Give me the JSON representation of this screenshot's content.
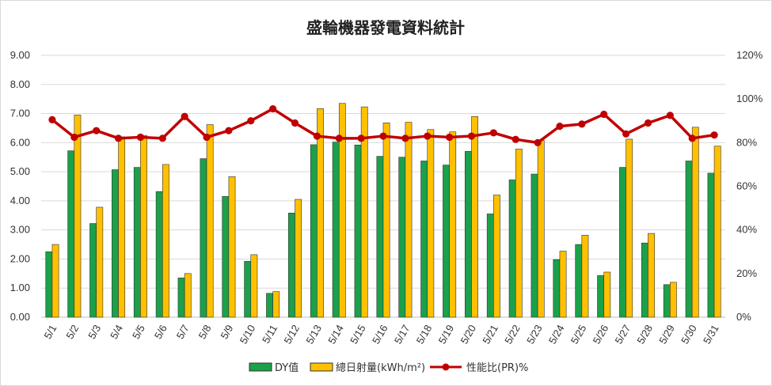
{
  "chart_data": {
    "type": "bar",
    "title": "盛輪機器發電資料統計",
    "categories": [
      "5/1",
      "5/2",
      "5/3",
      "5/4",
      "5/5",
      "5/6",
      "5/7",
      "5/8",
      "5/9",
      "5/10",
      "5/11",
      "5/12",
      "5/13",
      "5/14",
      "5/15",
      "5/16",
      "5/17",
      "5/18",
      "5/19",
      "5/20",
      "5/21",
      "5/22",
      "5/23",
      "5/24",
      "5/25",
      "5/26",
      "5/27",
      "5/28",
      "5/29",
      "5/30",
      "5/31"
    ],
    "left_axis": {
      "ylim": [
        0,
        9
      ],
      "ticks": [
        "0.00",
        "1.00",
        "2.00",
        "3.00",
        "4.00",
        "5.00",
        "6.00",
        "7.00",
        "8.00",
        "9.00"
      ]
    },
    "right_axis": {
      "ylim": [
        0,
        120
      ],
      "ticks": [
        "0%",
        "20%",
        "40%",
        "60%",
        "80%",
        "100%",
        "120%"
      ]
    },
    "grid": true,
    "legend_position": "bottom",
    "series": [
      {
        "name": "DY值",
        "kind": "bar",
        "axis": "left",
        "color": "#1aa14a",
        "values": [
          2.25,
          5.72,
          3.22,
          5.07,
          5.15,
          4.32,
          1.35,
          5.45,
          4.15,
          1.92,
          0.82,
          3.58,
          5.93,
          6.02,
          5.92,
          5.53,
          5.5,
          5.37,
          5.23,
          5.7,
          3.55,
          4.72,
          4.92,
          1.98,
          2.5,
          1.43,
          5.15,
          2.55,
          1.12,
          5.37,
          4.95
        ]
      },
      {
        "name": "總日射量(kWh/m²)",
        "kind": "bar",
        "axis": "left",
        "color": "#ffc000",
        "values": [
          2.5,
          6.95,
          3.78,
          6.2,
          6.25,
          5.25,
          1.5,
          6.62,
          4.83,
          2.15,
          0.88,
          4.05,
          7.17,
          7.35,
          7.23,
          6.68,
          6.7,
          6.45,
          6.37,
          6.9,
          4.2,
          5.78,
          6.08,
          2.27,
          2.82,
          1.55,
          6.12,
          2.88,
          1.2,
          6.53,
          5.88
        ]
      },
      {
        "name": "性能比(PR)%",
        "kind": "line",
        "axis": "right",
        "color": "#c00000",
        "values": [
          90.5,
          82.5,
          85.5,
          82,
          82.5,
          82,
          92,
          82.5,
          85.5,
          90,
          95.5,
          89,
          83,
          82,
          82,
          83,
          82,
          83,
          82.5,
          83,
          84.5,
          81.5,
          80,
          87.5,
          88.5,
          93,
          84,
          89,
          92.5,
          82,
          83.5
        ]
      }
    ]
  }
}
